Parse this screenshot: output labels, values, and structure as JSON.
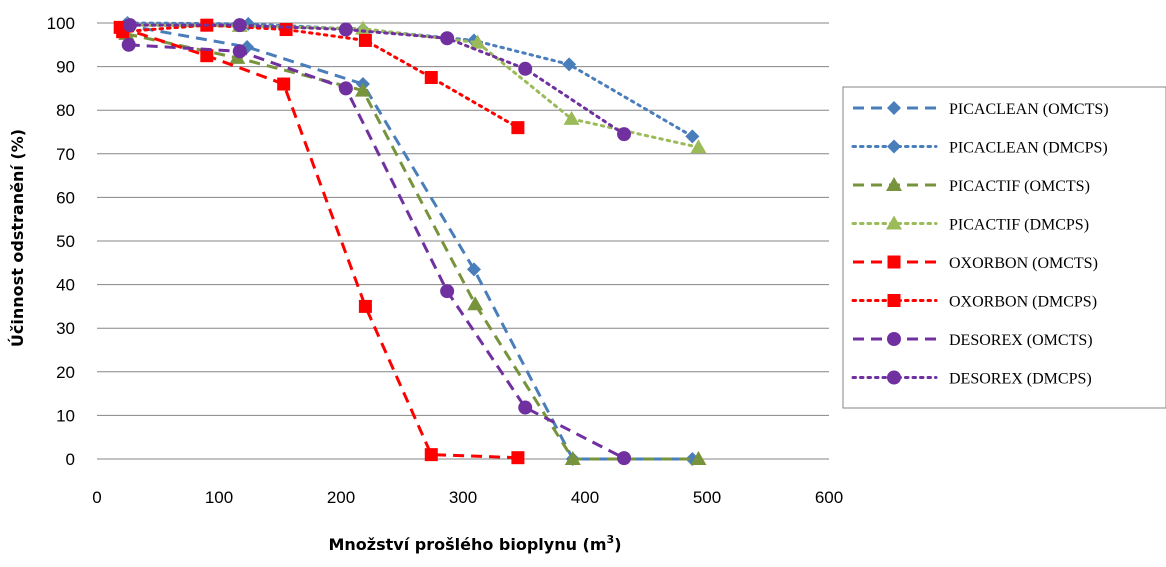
{
  "chart_data": {
    "type": "line",
    "title": "",
    "xlabel": "Množství prošlého bioplynu (m",
    "xlabel_sup": "3",
    "xlabel_end": ")",
    "ylabel": "Účinnost odstranění (%)",
    "xlim": [
      0,
      600
    ],
    "ylim": [
      0,
      100
    ],
    "x_ticks": [
      "0",
      "100",
      "200",
      "300",
      "400",
      "500",
      "600"
    ],
    "y_ticks": [
      "0",
      "10",
      "20",
      "30",
      "40",
      "50",
      "60",
      "70",
      "80",
      "90",
      "100"
    ],
    "grid": "horizontal",
    "legend_position": "right",
    "series": [
      {
        "name": "PICACLEAN (OMCTS)",
        "color": "#4a7ebb",
        "marker": "diamond",
        "line": "dash",
        "points": [
          [
            23,
            99.5
          ],
          [
            123,
            94.5
          ],
          [
            218,
            86
          ],
          [
            309,
            43.5
          ],
          [
            390,
            0
          ],
          [
            488,
            0
          ]
        ]
      },
      {
        "name": "PICACLEAN (DMCPS)",
        "color": "#4a7ebb",
        "marker": "diamond",
        "line": "dot",
        "points": [
          [
            25,
            100
          ],
          [
            124,
            99.8
          ],
          [
            218,
            98.5
          ],
          [
            309,
            96
          ],
          [
            387,
            90.5
          ],
          [
            488,
            74
          ]
        ]
      },
      {
        "name": "PICACTIF (OMCTS)",
        "color": "#77933c",
        "marker": "triangle",
        "line": "dash",
        "points": [
          [
            24,
            97.5
          ],
          [
            115,
            92
          ],
          [
            218,
            84.5
          ],
          [
            310,
            35.5
          ],
          [
            390,
            0
          ],
          [
            493,
            0
          ]
        ]
      },
      {
        "name": "PICACTIF (DMCPS)",
        "color": "#9bbb59",
        "marker": "triangle",
        "line": "dot",
        "points": [
          [
            25,
            99.5
          ],
          [
            117,
            99.3
          ],
          [
            218,
            98.7
          ],
          [
            312,
            95.5
          ],
          [
            389,
            78
          ],
          [
            493,
            71.5
          ]
        ]
      },
      {
        "name": "OXORBON (OMCTS)",
        "color": "#ff0000",
        "marker": "square",
        "line": "dash",
        "points": [
          [
            19,
            99
          ],
          [
            90,
            92.5
          ],
          [
            153,
            86
          ],
          [
            220,
            35
          ],
          [
            274,
            1
          ],
          [
            345,
            0.3
          ]
        ]
      },
      {
        "name": "OXORBON (DMCPS)",
        "color": "#ff0000",
        "marker": "square",
        "line": "dot",
        "points": [
          [
            21,
            98
          ],
          [
            90,
            99.5
          ],
          [
            155,
            98.5
          ],
          [
            220,
            96
          ],
          [
            274,
            87.5
          ],
          [
            345,
            76
          ]
        ]
      },
      {
        "name": "DESOREX (OMCTS)",
        "color": "#7030a0",
        "marker": "circle",
        "line": "dash",
        "points": [
          [
            26,
            95
          ],
          [
            117,
            93.5
          ],
          [
            204,
            85
          ],
          [
            287,
            38.5
          ],
          [
            351,
            11.8
          ],
          [
            432,
            0.2
          ]
        ]
      },
      {
        "name": "DESOREX (DMCPS)",
        "color": "#7030a0",
        "marker": "circle",
        "line": "dot",
        "points": [
          [
            27,
            99.5
          ],
          [
            117,
            99.5
          ],
          [
            204,
            98.5
          ],
          [
            287,
            96.5
          ],
          [
            351,
            89.5
          ],
          [
            432,
            74.5
          ]
        ]
      }
    ]
  }
}
